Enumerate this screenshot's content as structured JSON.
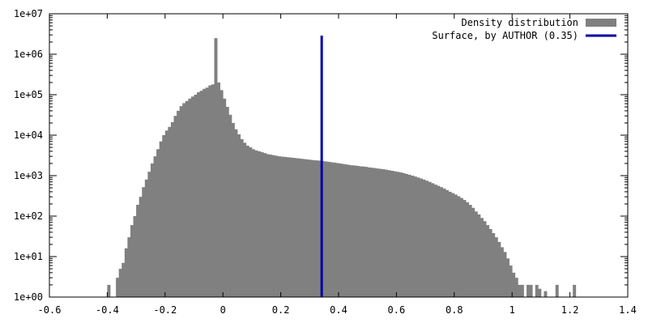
{
  "chart_data": {
    "type": "bar",
    "title": "",
    "xlabel": "",
    "ylabel": "",
    "xlim": [
      -0.6,
      1.4
    ],
    "ylim": [
      1,
      10000000
    ],
    "yscale": "log",
    "grid": false,
    "legend_position": "top-right",
    "x_ticks": [
      "-0.6",
      "-0.4",
      "-0.2",
      "0",
      "0.2",
      "0.4",
      "0.6",
      "0.8",
      "1",
      "1.2",
      "1.4"
    ],
    "y_ticks": [
      "1e+00",
      "1e+01",
      "1e+02",
      "1e+03",
      "1e+04",
      "1e+05",
      "1e+06",
      "1e+07"
    ],
    "bin_width": 0.01,
    "bins": [
      [
        -0.4,
        2
      ],
      [
        -0.37,
        3
      ],
      [
        -0.36,
        5
      ],
      [
        -0.35,
        7
      ],
      [
        -0.34,
        16
      ],
      [
        -0.33,
        30
      ],
      [
        -0.32,
        60
      ],
      [
        -0.31,
        100
      ],
      [
        -0.3,
        190
      ],
      [
        -0.29,
        300
      ],
      [
        -0.28,
        520
      ],
      [
        -0.27,
        800
      ],
      [
        -0.26,
        1250
      ],
      [
        -0.25,
        2000
      ],
      [
        -0.24,
        3000
      ],
      [
        -0.23,
        4500
      ],
      [
        -0.22,
        7000
      ],
      [
        -0.21,
        10000
      ],
      [
        -0.2,
        13000
      ],
      [
        -0.19,
        16000
      ],
      [
        -0.18,
        21000
      ],
      [
        -0.17,
        30000
      ],
      [
        -0.16,
        40000
      ],
      [
        -0.15,
        52000
      ],
      [
        -0.14,
        62000
      ],
      [
        -0.13,
        70000
      ],
      [
        -0.12,
        80000
      ],
      [
        -0.11,
        90000
      ],
      [
        -0.1,
        100000
      ],
      [
        -0.09,
        115000
      ],
      [
        -0.08,
        125000
      ],
      [
        -0.07,
        140000
      ],
      [
        -0.06,
        150000
      ],
      [
        -0.05,
        170000
      ],
      [
        -0.04,
        180000
      ],
      [
        -0.03,
        2500000
      ],
      [
        -0.02,
        200000
      ],
      [
        -0.01,
        130000
      ],
      [
        0.0,
        80000
      ],
      [
        0.01,
        50000
      ],
      [
        0.02,
        32000
      ],
      [
        0.03,
        20000
      ],
      [
        0.04,
        14000
      ],
      [
        0.05,
        10500
      ],
      [
        0.06,
        8000
      ],
      [
        0.07,
        6500
      ],
      [
        0.08,
        5500
      ],
      [
        0.09,
        5000
      ],
      [
        0.1,
        4500
      ],
      [
        0.11,
        4200
      ],
      [
        0.12,
        4000
      ],
      [
        0.13,
        3800
      ],
      [
        0.14,
        3600
      ],
      [
        0.15,
        3400
      ],
      [
        0.16,
        3300
      ],
      [
        0.17,
        3200
      ],
      [
        0.18,
        3100
      ],
      [
        0.19,
        3000
      ],
      [
        0.2,
        2950
      ],
      [
        0.21,
        2900
      ],
      [
        0.22,
        2850
      ],
      [
        0.23,
        2800
      ],
      [
        0.24,
        2750
      ],
      [
        0.25,
        2700
      ],
      [
        0.26,
        2650
      ],
      [
        0.27,
        2600
      ],
      [
        0.28,
        2550
      ],
      [
        0.29,
        2500
      ],
      [
        0.3,
        2450
      ],
      [
        0.31,
        2400
      ],
      [
        0.32,
        2380
      ],
      [
        0.33,
        2350
      ],
      [
        0.34,
        2300
      ],
      [
        0.35,
        2250
      ],
      [
        0.36,
        2200
      ],
      [
        0.37,
        2150
      ],
      [
        0.38,
        2100
      ],
      [
        0.39,
        2050
      ],
      [
        0.4,
        2000
      ],
      [
        0.41,
        1950
      ],
      [
        0.42,
        1900
      ],
      [
        0.43,
        1850
      ],
      [
        0.44,
        1800
      ],
      [
        0.45,
        1780
      ],
      [
        0.46,
        1750
      ],
      [
        0.47,
        1700
      ],
      [
        0.48,
        1680
      ],
      [
        0.49,
        1650
      ],
      [
        0.5,
        1600
      ],
      [
        0.51,
        1570
      ],
      [
        0.52,
        1540
      ],
      [
        0.53,
        1500
      ],
      [
        0.54,
        1470
      ],
      [
        0.55,
        1440
      ],
      [
        0.56,
        1400
      ],
      [
        0.57,
        1360
      ],
      [
        0.58,
        1320
      ],
      [
        0.59,
        1280
      ],
      [
        0.6,
        1240
      ],
      [
        0.61,
        1200
      ],
      [
        0.62,
        1150
      ],
      [
        0.63,
        1100
      ],
      [
        0.64,
        1050
      ],
      [
        0.65,
        1000
      ],
      [
        0.66,
        950
      ],
      [
        0.67,
        900
      ],
      [
        0.68,
        850
      ],
      [
        0.69,
        800
      ],
      [
        0.7,
        750
      ],
      [
        0.71,
        700
      ],
      [
        0.72,
        650
      ],
      [
        0.73,
        600
      ],
      [
        0.74,
        560
      ],
      [
        0.75,
        520
      ],
      [
        0.76,
        480
      ],
      [
        0.77,
        440
      ],
      [
        0.78,
        400
      ],
      [
        0.79,
        370
      ],
      [
        0.8,
        340
      ],
      [
        0.81,
        310
      ],
      [
        0.82,
        280
      ],
      [
        0.83,
        250
      ],
      [
        0.84,
        220
      ],
      [
        0.85,
        190
      ],
      [
        0.86,
        160
      ],
      [
        0.87,
        130
      ],
      [
        0.88,
        110
      ],
      [
        0.89,
        90
      ],
      [
        0.9,
        75
      ],
      [
        0.91,
        60
      ],
      [
        0.92,
        48
      ],
      [
        0.93,
        38
      ],
      [
        0.94,
        30
      ],
      [
        0.95,
        23
      ],
      [
        0.96,
        17
      ],
      [
        0.97,
        13
      ],
      [
        0.98,
        9
      ],
      [
        0.99,
        6
      ],
      [
        1.0,
        4
      ],
      [
        1.01,
        3
      ],
      [
        1.02,
        2
      ],
      [
        1.03,
        2
      ],
      [
        1.05,
        2
      ],
      [
        1.06,
        2
      ],
      [
        1.08,
        2
      ],
      [
        1.09,
        1.6
      ],
      [
        1.11,
        1.4
      ],
      [
        1.15,
        2
      ],
      [
        1.21,
        2
      ]
    ],
    "series": [
      {
        "name": "Density distribution",
        "color": "#808080",
        "type": "bar"
      },
      {
        "name": "Surface, by AUTHOR (0.35)",
        "color": "#0000a8",
        "type": "vline",
        "x": 0.35
      }
    ]
  }
}
